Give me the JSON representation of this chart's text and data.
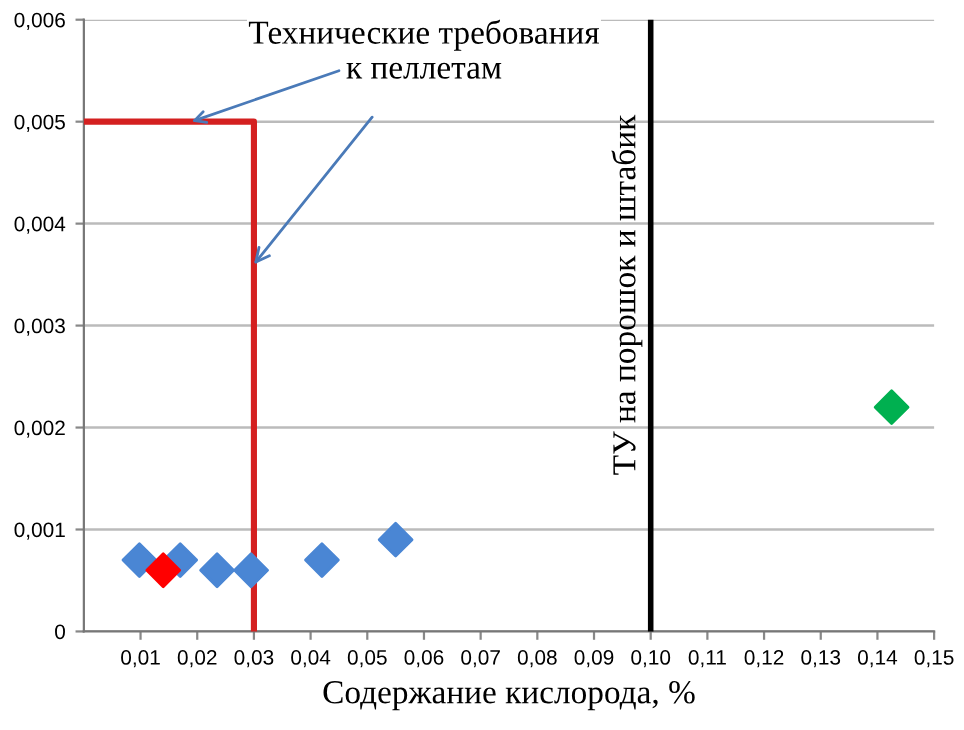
{
  "chart_data": {
    "type": "scatter",
    "xlabel": "Содержание кислорода, %",
    "marker": "diamond",
    "grid": "y",
    "xlim": [
      0,
      0.15
    ],
    "ylim": [
      0,
      0.006
    ],
    "xticks": [
      {
        "value": 0.01,
        "label": "0,01"
      },
      {
        "value": 0.02,
        "label": "0,02"
      },
      {
        "value": 0.03,
        "label": "0,03"
      },
      {
        "value": 0.04,
        "label": "0,04"
      },
      {
        "value": 0.05,
        "label": "0,05"
      },
      {
        "value": 0.06,
        "label": "0,06"
      },
      {
        "value": 0.07,
        "label": "0,07"
      },
      {
        "value": 0.08,
        "label": "0,08"
      },
      {
        "value": 0.09,
        "label": "0,09"
      },
      {
        "value": 0.1,
        "label": "0,10"
      },
      {
        "value": 0.11,
        "label": "0,11"
      },
      {
        "value": 0.12,
        "label": "0,12"
      },
      {
        "value": 0.13,
        "label": "0,13"
      },
      {
        "value": 0.14,
        "label": "0,14"
      },
      {
        "value": 0.15,
        "label": "0,15"
      }
    ],
    "yticks": [
      0,
      {
        "value": 0.001,
        "label": "0,001"
      },
      {
        "value": 0.002,
        "label": "0,002"
      },
      {
        "value": 0.003,
        "label": "0,003"
      },
      {
        "value": 0.004,
        "label": "0,004"
      },
      {
        "value": 0.005,
        "label": "0,005"
      },
      {
        "value": 0.006,
        "label": "0,006"
      }
    ],
    "series": [
      {
        "color": "#4a86d4",
        "x": [
          0.0098,
          0.017,
          0.0235,
          0.0295,
          0.042,
          0.055
        ],
        "values": [
          0.0007,
          0.0007,
          0.0006,
          0.0006,
          0.0007,
          0.0009
        ]
      },
      {
        "color": "#ff0000",
        "x": [
          0.014
        ],
        "values": [
          0.0006
        ]
      },
      {
        "color": "#00b050",
        "x": [
          0.1425
        ],
        "values": [
          0.0022
        ]
      },
      {
        "type": "line",
        "marker": "none",
        "color": "#d42020",
        "x": [
          0,
          0.03,
          0.03
        ],
        "values": [
          0.005,
          0.005,
          0
        ]
      }
    ],
    "ref_lines": [
      {
        "axis": "x",
        "value": 0.1,
        "label": "ТУ на порошок и штабик",
        "color": "#000000"
      }
    ],
    "annotations": [
      {
        "text": "Технические требования\nк пеллетам",
        "x": 0.03,
        "y": 0.0036
      }
    ]
  }
}
